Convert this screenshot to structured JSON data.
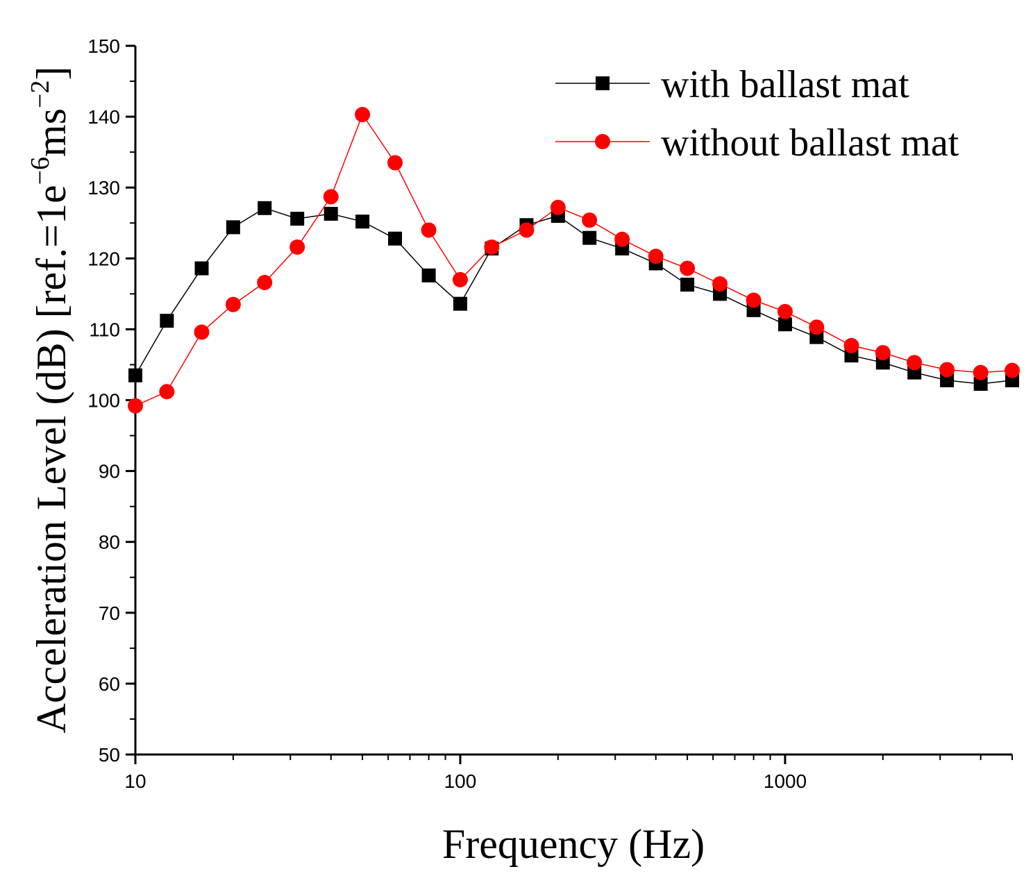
{
  "chart_data": {
    "type": "line",
    "xscale": "log",
    "xlabel": "Frequency (Hz)",
    "ylabel": {
      "main": "Acceleration Level (dB) [ref.=1e",
      "exp1": "−6",
      "mid": "ms",
      "exp2": "−2",
      "end": "]"
    },
    "xlim": [
      10,
      5000
    ],
    "ylim": [
      50,
      150
    ],
    "x_ticks": [
      10,
      100,
      1000
    ],
    "x_tick_labels": [
      "10",
      "100",
      "1000"
    ],
    "y_ticks": [
      50,
      60,
      70,
      80,
      90,
      100,
      110,
      120,
      130,
      140,
      150
    ],
    "y_tick_labels": [
      "50",
      "60",
      "70",
      "80",
      "90",
      "100",
      "110",
      "120",
      "130",
      "140",
      "150"
    ],
    "x": [
      10,
      12.5,
      16,
      20,
      25,
      31.5,
      40,
      50,
      63,
      80,
      100,
      125,
      160,
      200,
      250,
      315,
      400,
      500,
      630,
      800,
      1000,
      1250,
      1600,
      2000,
      2500,
      3150,
      4000,
      5000
    ],
    "series": [
      {
        "name": "with ballast mat",
        "color": "#000000",
        "marker": "square",
        "values": [
          103.5,
          111.2,
          118.6,
          124.4,
          127.1,
          125.6,
          126.3,
          125.2,
          122.8,
          117.6,
          113.6,
          121.4,
          124.7,
          126.0,
          122.9,
          121.4,
          119.3,
          116.3,
          115.0,
          112.7,
          110.7,
          108.9,
          106.3,
          105.3,
          103.9,
          102.8,
          102.3,
          102.8
        ]
      },
      {
        "name": "without ballast mat",
        "color": "#ff0000",
        "marker": "circle",
        "values": [
          99.2,
          101.2,
          109.6,
          113.5,
          116.6,
          121.6,
          128.7,
          140.3,
          133.5,
          124.0,
          117.0,
          121.6,
          124.0,
          127.2,
          125.4,
          122.7,
          120.3,
          118.6,
          116.4,
          114.1,
          112.5,
          110.3,
          107.7,
          106.7,
          105.3,
          104.3,
          103.9,
          104.2
        ]
      }
    ],
    "legend_position": "top-right",
    "grid": false
  }
}
